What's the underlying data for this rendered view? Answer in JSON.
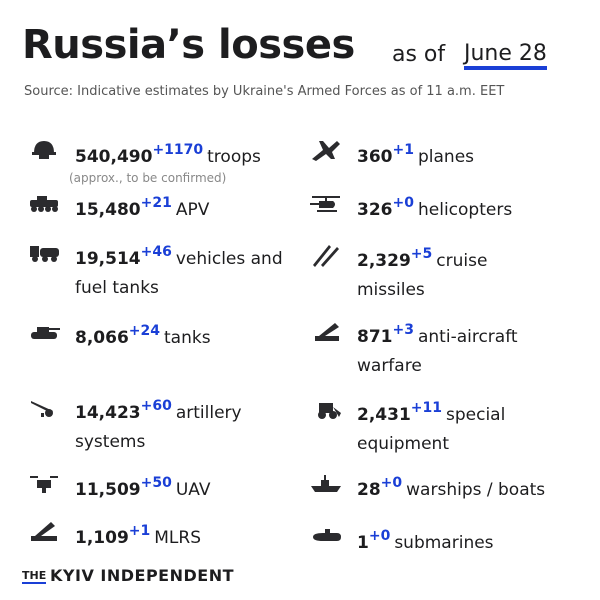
{
  "header": {
    "title": "Russia’s losses",
    "as_of": "as of",
    "date": "June 28",
    "source": "Source: Indicative estimates by Ukraine's Armed Forces as of 11 a.m. EET"
  },
  "items": [
    {
      "total": "540,490",
      "change": "+1170",
      "label": "troops",
      "note": "(approx., to be confirmed)"
    },
    {
      "total": "15,480",
      "change": "+21",
      "label": "APV"
    },
    {
      "total": "19,514",
      "change": "+46",
      "label": "vehicles and fuel tanks"
    },
    {
      "total": "8,066",
      "change": "+24",
      "label": "tanks"
    },
    {
      "total": "14,423",
      "change": "+60",
      "label": "artillery systems"
    },
    {
      "total": "11,509",
      "change": "+50",
      "label": "UAV"
    },
    {
      "total": "1,109",
      "change": "+1",
      "label": "MLRS"
    },
    {
      "total": "360",
      "change": "+1",
      "label": "planes"
    },
    {
      "total": "326",
      "change": "+0",
      "label": "helicopters"
    },
    {
      "total": "2,329",
      "change": "+5",
      "label": "cruise missiles"
    },
    {
      "total": "871",
      "change": "+3",
      "label": "anti-aircraft warfare"
    },
    {
      "total": "2,431",
      "change": "+11",
      "label": "special equipment"
    },
    {
      "total": "28",
      "change": "+0",
      "label": "warships / boats"
    },
    {
      "total": "1",
      "change": "+0",
      "label": "submarines"
    }
  ],
  "footer": {
    "the": "THE",
    "name": "KYIV INDEPENDENT"
  }
}
